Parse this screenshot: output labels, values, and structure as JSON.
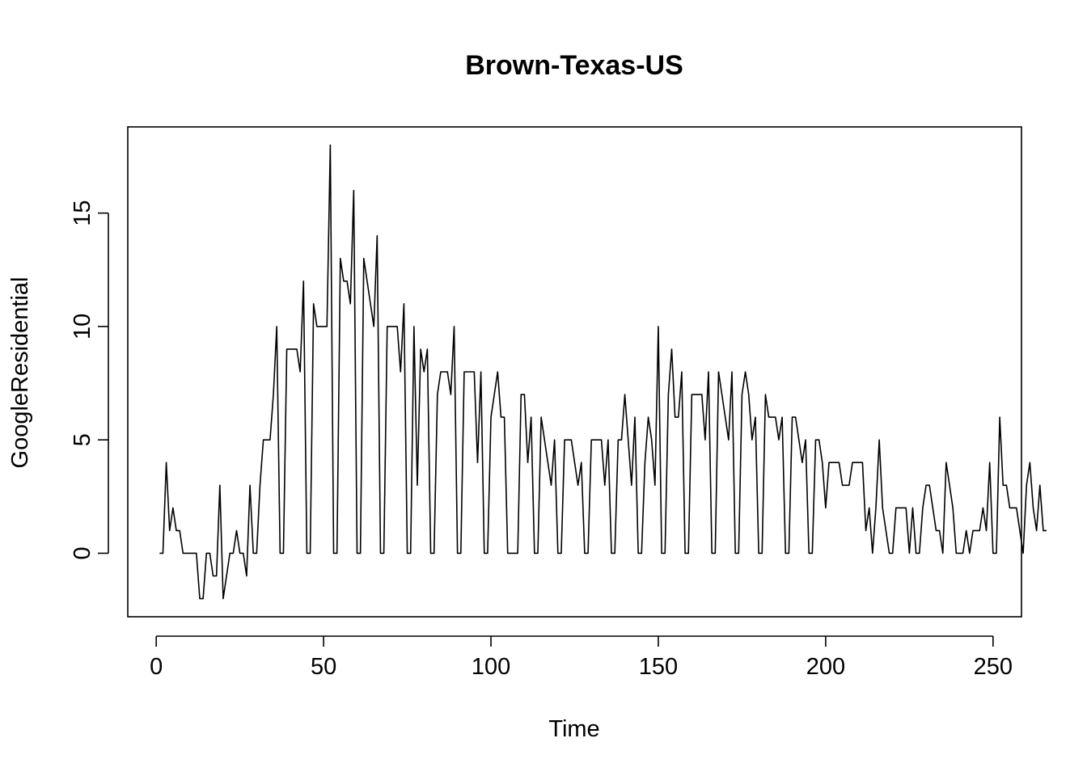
{
  "chart_data": {
    "type": "line",
    "title": "Brown-Texas-US",
    "xlabel": "Time",
    "ylabel": "GoogleResidential",
    "xlim": [
      -8.5,
      258.5
    ],
    "ylim": [
      -2.8,
      18.8
    ],
    "x_ticks": [
      0,
      50,
      100,
      150,
      200,
      250
    ],
    "y_ticks": [
      0,
      5,
      10,
      15
    ],
    "x_tick_labels": [
      "0",
      "50",
      "100",
      "150",
      "200",
      "250"
    ],
    "y_tick_labels": [
      "0",
      "5",
      "10",
      "15"
    ],
    "grid": false,
    "series": [
      {
        "x_start": 1,
        "x_step": 1,
        "values": [
          0,
          0,
          4,
          1,
          2,
          1,
          1,
          0,
          0,
          0,
          0,
          0,
          -2,
          -2,
          0,
          0,
          -1,
          -1,
          3,
          -2,
          -1,
          0,
          0,
          1,
          0,
          0,
          -1,
          3,
          0,
          0,
          3,
          5,
          5,
          5,
          7,
          10,
          0,
          0,
          9,
          9,
          9,
          9,
          8,
          12,
          0,
          0,
          11,
          10,
          10,
          10,
          10,
          18,
          0,
          0,
          13,
          12,
          12,
          11,
          16,
          0,
          0,
          13,
          12,
          11,
          10,
          14,
          0,
          0,
          10,
          10,
          10,
          10,
          8,
          11,
          0,
          0,
          10,
          3,
          9,
          8,
          9,
          0,
          0,
          7,
          8,
          8,
          8,
          7,
          10,
          0,
          0,
          8,
          8,
          8,
          8,
          4,
          8,
          0,
          0,
          6,
          7,
          8,
          6,
          6,
          0,
          0,
          0,
          0,
          7,
          7,
          4,
          6,
          0,
          0,
          6,
          5,
          4,
          3,
          5,
          0,
          0,
          5,
          5,
          5,
          4,
          3,
          4,
          0,
          0,
          5,
          5,
          5,
          5,
          3,
          5,
          0,
          0,
          5,
          5,
          7,
          5,
          3,
          6,
          0,
          0,
          4,
          6,
          5,
          3,
          10,
          0,
          0,
          7,
          9,
          6,
          6,
          8,
          0,
          0,
          7,
          7,
          7,
          7,
          5,
          8,
          0,
          0,
          8,
          7,
          6,
          5,
          8,
          0,
          0,
          7,
          8,
          7,
          5,
          6,
          0,
          0,
          7,
          6,
          6,
          6,
          5,
          6,
          0,
          0,
          6,
          6,
          5,
          4,
          5,
          0,
          0,
          5,
          5,
          4,
          2,
          4,
          4,
          4,
          4,
          3,
          3,
          3,
          4,
          4,
          4,
          4,
          1,
          2,
          0,
          2,
          5,
          2,
          1,
          0,
          0,
          2,
          2,
          2,
          2,
          0,
          2,
          0,
          0,
          2,
          3,
          3,
          2,
          1,
          1,
          0,
          4,
          3,
          2,
          0,
          0,
          0,
          1,
          0,
          1,
          1,
          1,
          2,
          1,
          4,
          0,
          0,
          6,
          3,
          3,
          2,
          2,
          2,
          1,
          0,
          3,
          4,
          2,
          1,
          3,
          1,
          1
        ]
      }
    ]
  }
}
